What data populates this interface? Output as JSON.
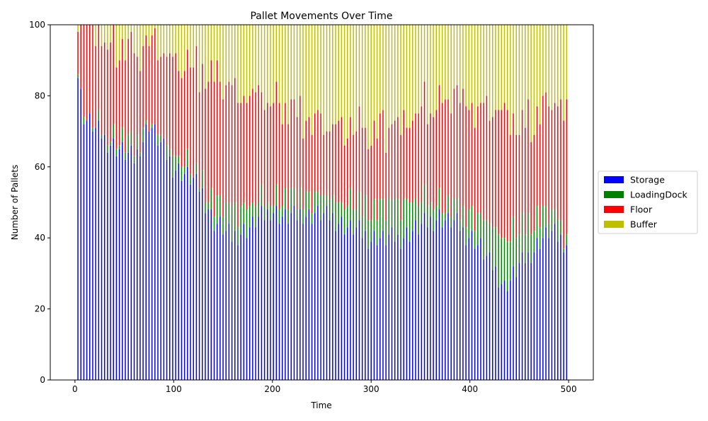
{
  "chart_data": {
    "type": "bar",
    "stacked": true,
    "title": "Pallet Movements Over Time",
    "xlabel": "Time",
    "ylabel": "Number of Pallets",
    "xlim": [
      -25,
      525
    ],
    "ylim": [
      0,
      100
    ],
    "xticks": [
      0,
      100,
      200,
      300,
      400,
      500
    ],
    "yticks": [
      0,
      20,
      40,
      60,
      80,
      100
    ],
    "grid": false,
    "legend_position": "right",
    "x_start": 3,
    "x_step": 3,
    "series": [
      {
        "name": "Storage",
        "color": "#0000ff"
      },
      {
        "name": "LoadingDock",
        "color": "#008000"
      },
      {
        "name": "Floor",
        "color": "#ff0000"
      },
      {
        "name": "Buffer",
        "color": "#bfbf00"
      }
    ],
    "keyframes": {
      "time": [
        3,
        9,
        30,
        60,
        75,
        100,
        125,
        140,
        160,
        200,
        210,
        250,
        300,
        330,
        370,
        385,
        410,
        435,
        450,
        480,
        500
      ],
      "Storage": [
        86,
        74,
        68,
        62,
        72,
        60,
        55,
        45,
        40,
        48,
        46,
        47,
        40,
        40,
        46,
        44,
        38,
        26,
        32,
        42,
        38
      ],
      "LoadingDock": [
        0,
        0,
        1,
        4,
        0,
        4,
        2,
        5,
        8,
        3,
        5,
        5,
        8,
        10,
        4,
        4,
        8,
        14,
        10,
        6,
        2
      ],
      "Floor": [
        14,
        26,
        26,
        26,
        23,
        26,
        30,
        36,
        33,
        28,
        26,
        20,
        22,
        22,
        28,
        32,
        30,
        36,
        28,
        30,
        37
      ]
    }
  }
}
